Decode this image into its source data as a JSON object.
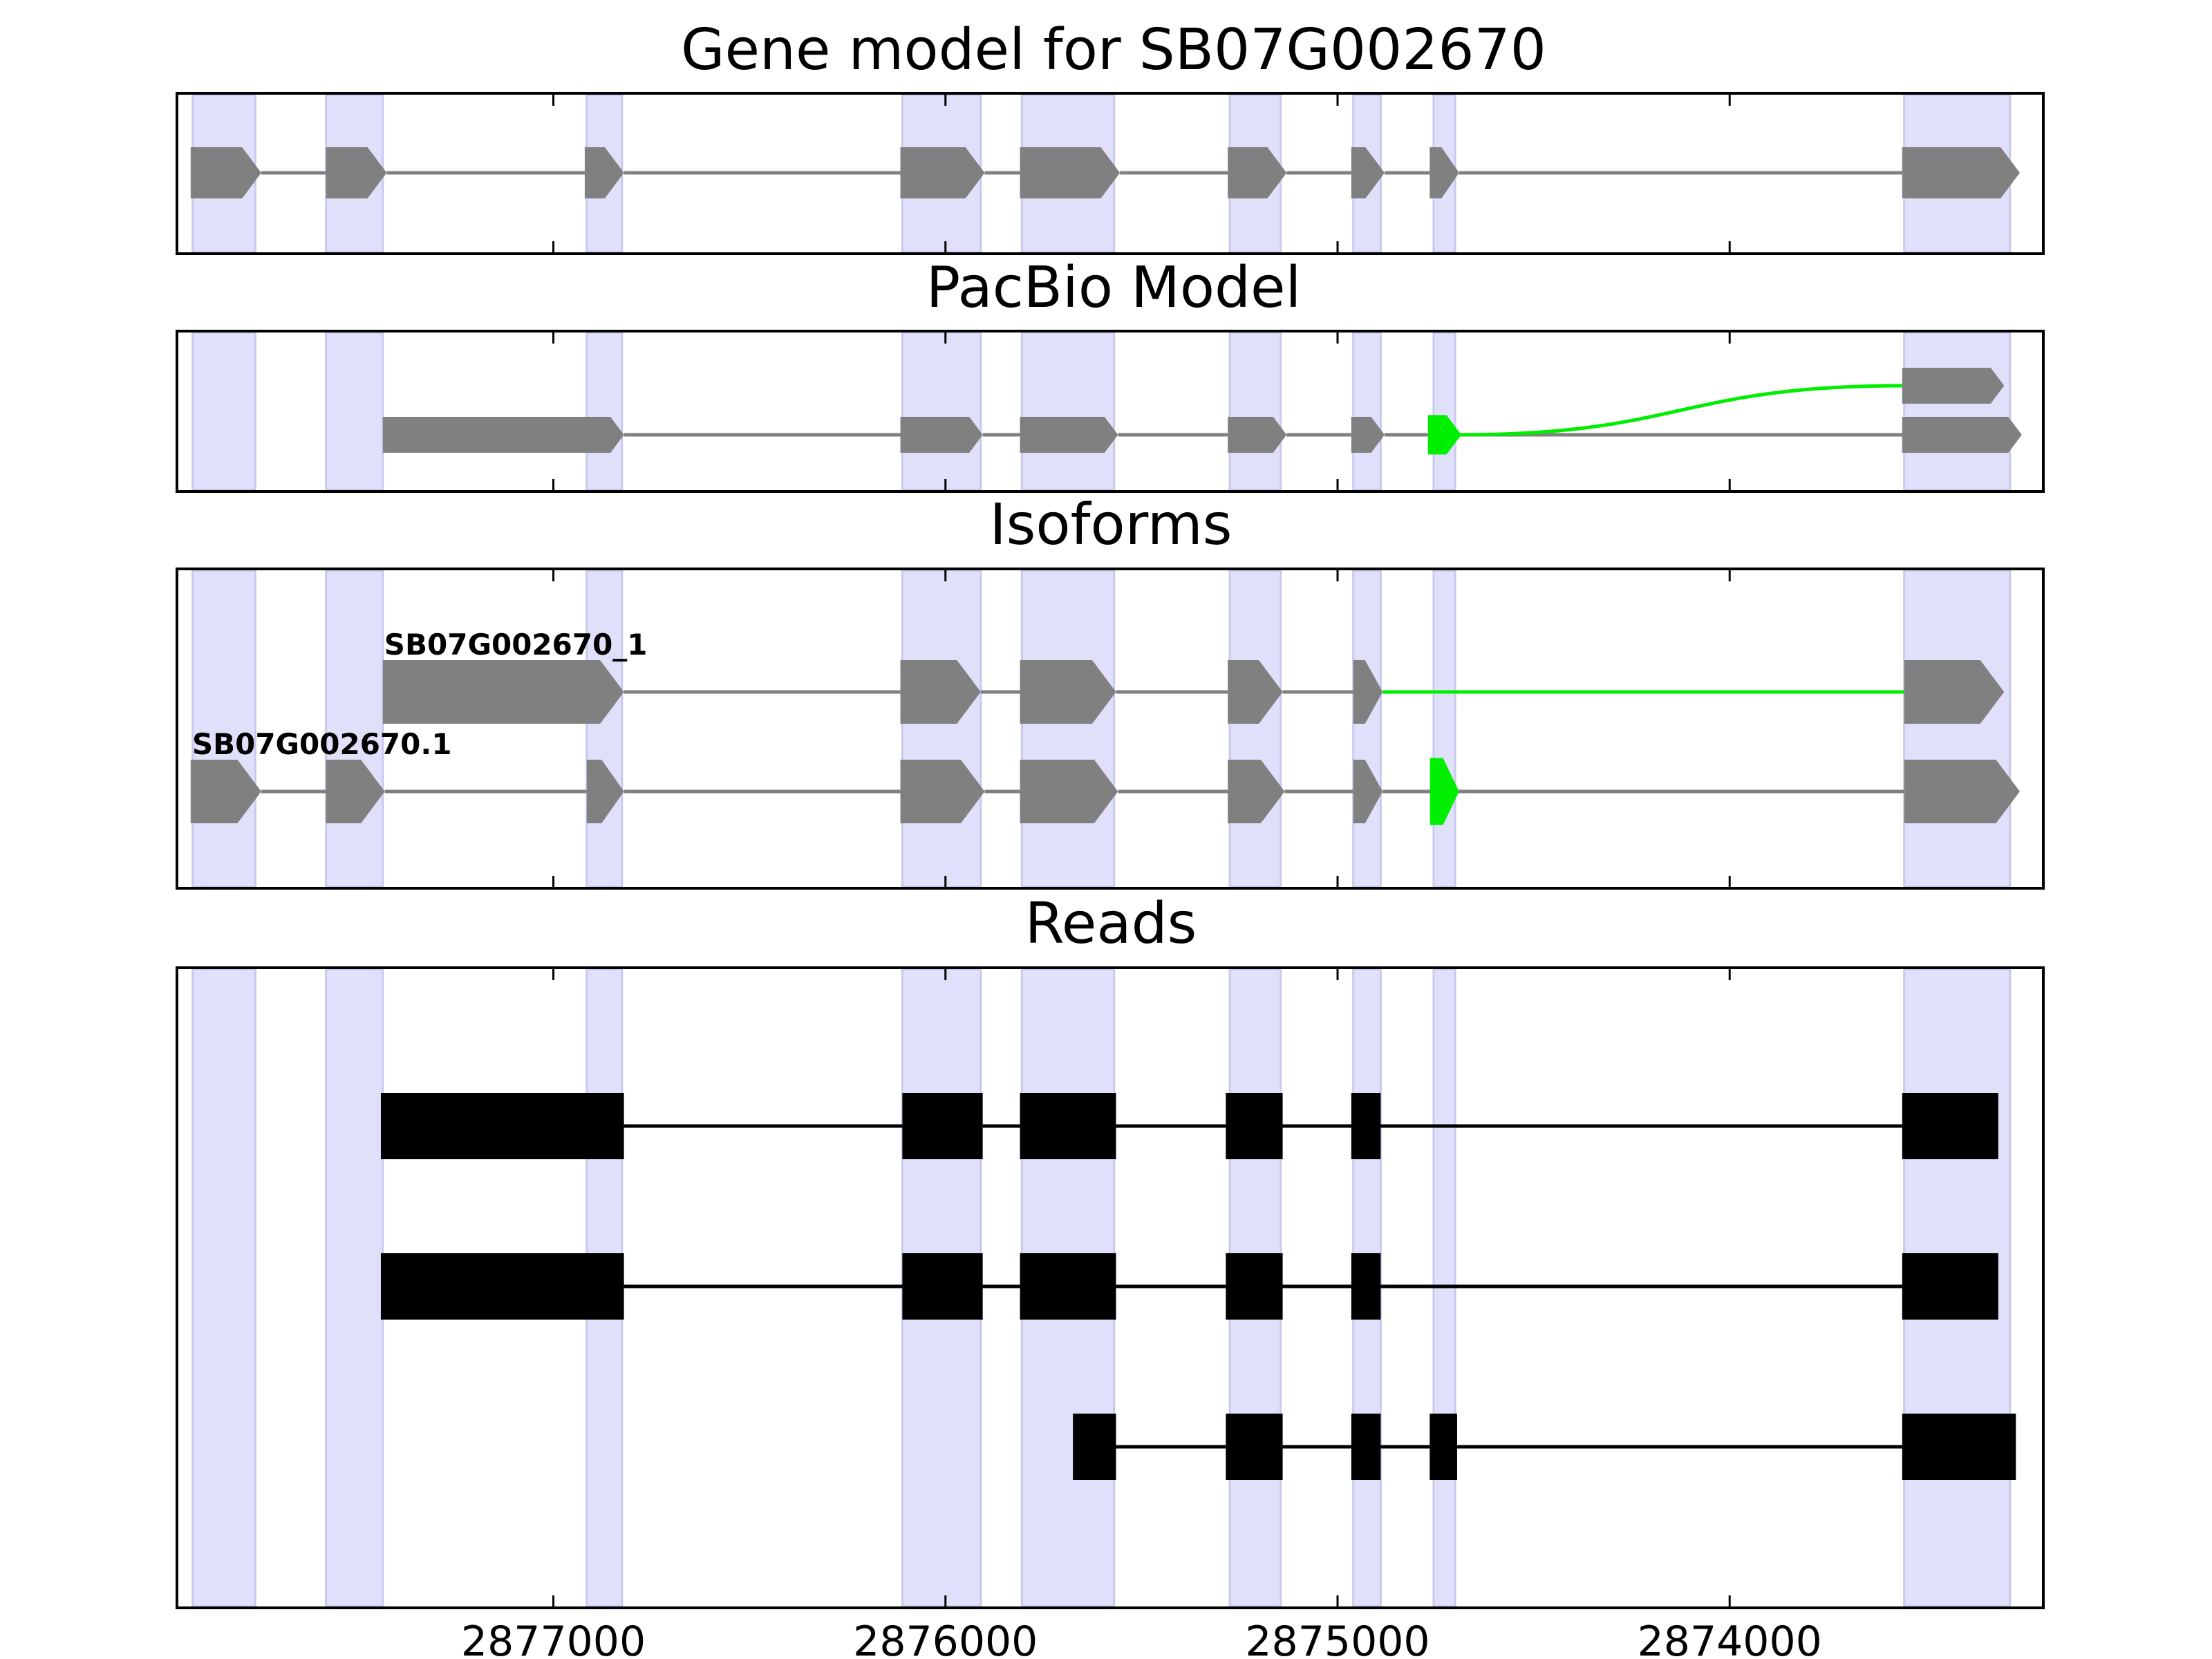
{
  "colors": {
    "shade": "#e0e0fb",
    "shade_edge": "#c9c9ee",
    "exon": "#808080",
    "intron": "#808080",
    "novel": "#00ee00",
    "read": "#000000"
  },
  "xaxis": {
    "range": [
      2877960,
      2873200
    ],
    "ticks": [
      {
        "value": 2877000,
        "label": "2877000"
      },
      {
        "value": 2876000,
        "label": "2876000"
      },
      {
        "value": 2875000,
        "label": "2875000"
      },
      {
        "value": 2874000,
        "label": "2874000"
      }
    ]
  },
  "shaded_regions": [
    [
      2877920,
      2877760
    ],
    [
      2877580,
      2877435
    ],
    [
      2876915,
      2876825
    ],
    [
      2876110,
      2875910
    ],
    [
      2875805,
      2875570
    ],
    [
      2875275,
      2875145
    ],
    [
      2874960,
      2874890
    ],
    [
      2874755,
      2874700
    ],
    [
      2873555,
      2873285
    ]
  ],
  "panels": [
    {
      "id": "gene-model",
      "title": "Gene model for SB07G002670",
      "transcripts": [
        {
          "label": "",
          "exons": [
            [
              2877925,
              2877745
            ],
            [
              2877580,
              2877425
            ],
            [
              2876920,
              2876820
            ],
            [
              2876115,
              2875900
            ],
            [
              2875810,
              2875555
            ],
            [
              2875280,
              2875130
            ],
            [
              2874965,
              2874880
            ],
            [
              2874765,
              2874690
            ],
            [
              2873560,
              2873260
            ]
          ],
          "novel_exons": [],
          "novel_introns": []
        }
      ]
    },
    {
      "id": "pacbio-model",
      "title": "PacBio Model",
      "transcripts": [
        {
          "label": "",
          "exons": [
            [
              2877435,
              2876820
            ],
            [
              2876115,
              2875905
            ],
            [
              2875810,
              2875560
            ],
            [
              2875280,
              2875130
            ],
            [
              2874965,
              2874880
            ],
            [
              2874765,
              2874690
            ],
            [
              2873560,
              2873255
            ]
          ],
          "novel_exons": [
            [
              2874765,
              2874690
            ]
          ],
          "novel_introns": []
        },
        {
          "label": "",
          "exons": [
            [
              2873560,
              2873300
            ]
          ],
          "novel_exons": [],
          "novel_introns": [],
          "branch_from_novel": true
        }
      ]
    },
    {
      "id": "isoforms",
      "title": "Isoforms",
      "transcripts": [
        {
          "label": "SB07G002670_1",
          "exons": [
            [
              2877435,
              2876820
            ],
            [
              2876115,
              2875910
            ],
            [
              2875810,
              2875565
            ],
            [
              2875280,
              2875140
            ],
            [
              2874960,
              2874885
            ],
            [
              2873555,
              2873300
            ]
          ],
          "novel_exons": [],
          "novel_introns": [
            [
              2874885,
              2873555
            ]
          ]
        },
        {
          "label": "SB07G002670.1",
          "exons": [
            [
              2877925,
              2877745
            ],
            [
              2877580,
              2877430
            ],
            [
              2876915,
              2876820
            ],
            [
              2876115,
              2875900
            ],
            [
              2875810,
              2875560
            ],
            [
              2875280,
              2875135
            ],
            [
              2874960,
              2874885
            ],
            [
              2874760,
              2874695
            ],
            [
              2873555,
              2873260
            ]
          ],
          "novel_exons": [
            [
              2874760,
              2874695
            ]
          ],
          "novel_introns": []
        }
      ]
    },
    {
      "id": "reads",
      "title": "Reads",
      "transcripts": [
        {
          "label": "",
          "exons": [
            [
              2877440,
              2876820
            ],
            [
              2876110,
              2875905
            ],
            [
              2875810,
              2875565
            ],
            [
              2875285,
              2875140
            ],
            [
              2874965,
              2874890
            ],
            [
              2873560,
              2873315
            ]
          ],
          "novel_exons": [],
          "novel_introns": []
        },
        {
          "label": "",
          "exons": [
            [
              2877440,
              2876820
            ],
            [
              2876110,
              2875905
            ],
            [
              2875810,
              2875565
            ],
            [
              2875285,
              2875140
            ],
            [
              2874965,
              2874890
            ],
            [
              2873560,
              2873315
            ]
          ],
          "novel_exons": [],
          "novel_introns": []
        },
        {
          "label": "",
          "exons": [
            [
              2875675,
              2875565
            ],
            [
              2875285,
              2875140
            ],
            [
              2874965,
              2874890
            ],
            [
              2874765,
              2874695
            ],
            [
              2873560,
              2873270
            ]
          ],
          "novel_exons": [],
          "novel_introns": []
        }
      ]
    }
  ]
}
